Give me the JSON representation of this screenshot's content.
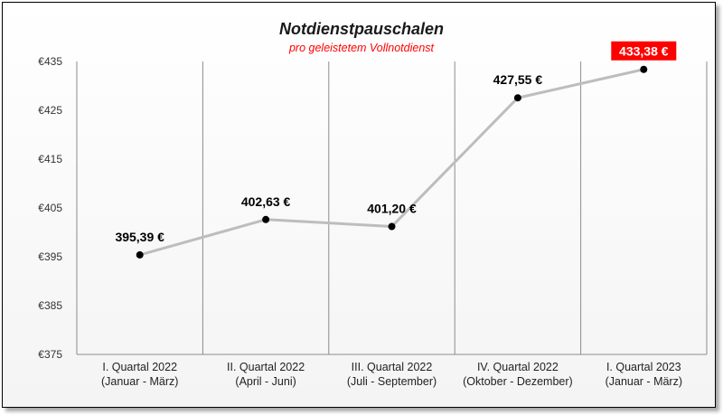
{
  "chart_data": {
    "type": "line",
    "title": "Notdienstpauschalen",
    "subtitle": "pro geleistetem Vollnotdienst",
    "categories": [
      [
        "I. Quartal 2022",
        "(Januar - März)"
      ],
      [
        "II. Quartal 2022",
        "(April - Juni)"
      ],
      [
        "III. Quartal 2022",
        "(Juli - September)"
      ],
      [
        "IV. Quartal 2022",
        "(Oktober - Dezember)"
      ],
      [
        "I. Quartal 2023",
        "(Januar - März)"
      ]
    ],
    "values": [
      395.39,
      402.63,
      401.2,
      427.55,
      433.38
    ],
    "data_labels": [
      "395,39 €",
      "402,63 €",
      "401,20 €",
      "427,55 €",
      "433,38 €"
    ],
    "highlight_index": 4,
    "ylim": [
      375,
      435
    ],
    "yticks": [
      375,
      385,
      395,
      405,
      415,
      425,
      435
    ],
    "ytick_labels": [
      "€375",
      "€385",
      "€395",
      "€405",
      "€415",
      "€425",
      "€435"
    ],
    "xlabel": "",
    "ylabel": "",
    "grid": "vertical",
    "colors": {
      "line": "#bdbdbd",
      "point": "#000000",
      "highlight": "#ff0000",
      "subtitle": "#ff0000"
    }
  }
}
